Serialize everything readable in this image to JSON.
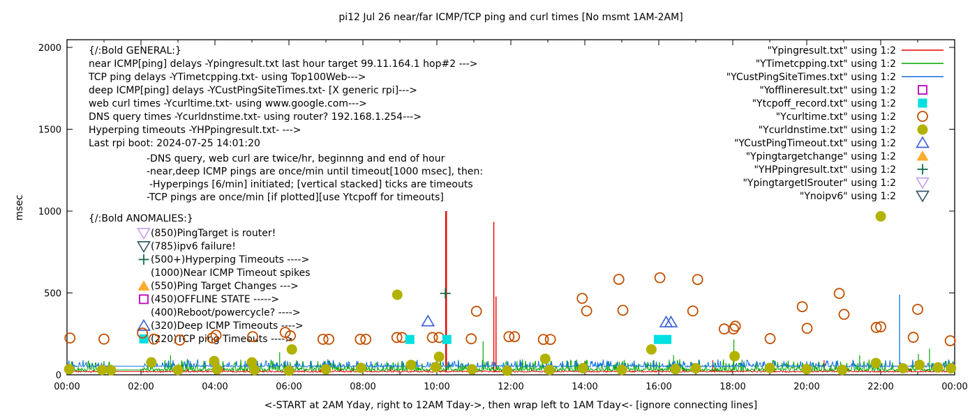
{
  "chart_data": {
    "type": "line+scatter",
    "title": "pi12 Jul 26  near/far ICMP/TCP ping and curl times [No msmt 1AM-2AM]",
    "xlabel": "<-START at 2AM Yday, right to 12AM Tday->, then wrap left to 1AM Tday<- [ignore connecting lines]",
    "ylabel": "msec",
    "xlim_hours": [
      0,
      24
    ],
    "ylim": [
      0,
      2000
    ],
    "yticks": [
      0,
      500,
      1000,
      1500,
      2000
    ],
    "xtick_step_hours": 2,
    "xtick_labels": [
      "00:00",
      "02:00",
      "04:00",
      "06:00",
      "08:00",
      "10:00",
      "12:00",
      "14:00",
      "16:00",
      "18:00",
      "20:00",
      "22:00",
      "00:00"
    ],
    "no_measurement_gap_hours": [
      1.2,
      2.02
    ],
    "grid": false,
    "legend_position": "top-right-inside",
    "colors": {
      "red": "#e60000",
      "green": "#00a400",
      "blue": "#0d6fe0",
      "magenta": "#bf00bf",
      "cyan": "#00e0e0",
      "orangebrown": "#c24e00",
      "olive": "#b2b200",
      "triblue": "#3f63d8",
      "orange": "#ffab2e",
      "darkgreen": "#0f6b45",
      "violet": "#c9a0f0",
      "slate": "#35596e",
      "axis": "#000000"
    },
    "lines": [
      {
        "name": "Ypingresult near ICMP ping",
        "color_key": "red",
        "base": 20,
        "jitter": 4,
        "spike_prob": 0.04,
        "spike_amp": 20,
        "spikes": [
          [
            10.25,
            1000,
            2.4
          ],
          [
            11.54,
            934,
            1.4
          ],
          [
            11.6,
            478,
            1.4
          ],
          [
            14.0,
            84,
            1.2
          ],
          [
            17.46,
            89,
            1.2
          ],
          [
            20.47,
            89,
            1.2
          ]
        ]
      },
      {
        "name": "YTimetcpping TCP ping",
        "color_key": "green",
        "base": 30,
        "jitter": 8,
        "spike_prob": 0.3,
        "spike_amp": 60,
        "spikes": [
          [
            2.8,
            119,
            1.2
          ],
          [
            5.75,
            138,
            1.2
          ],
          [
            11.25,
            205,
            1.2
          ],
          [
            16.4,
            120,
            1.2
          ],
          [
            18.03,
            216,
            1.2
          ],
          [
            21.43,
            119,
            1.2
          ],
          [
            23.02,
            127,
            1.2
          ],
          [
            23.32,
            160,
            1.2
          ]
        ]
      },
      {
        "name": "YCustPingSiteTimes deep ICMP",
        "color_key": "blue",
        "base": 52,
        "jitter": 5,
        "spike_prob": 0.25,
        "spike_amp": 38,
        "spikes": [
          [
            22.51,
            490,
            1.3
          ]
        ]
      }
    ],
    "scatter": [
      {
        "name": "Ycurltime web curl times",
        "marker": "circle-open",
        "color_key": "orangebrown",
        "points": [
          [
            0.08,
            225
          ],
          [
            1.0,
            218
          ],
          [
            2.04,
            255
          ],
          [
            2.35,
            218
          ],
          [
            3.05,
            212
          ],
          [
            3.93,
            225
          ],
          [
            4.03,
            242
          ],
          [
            5.02,
            233
          ],
          [
            5.9,
            259
          ],
          [
            6.04,
            238
          ],
          [
            6.92,
            217
          ],
          [
            7.08,
            217
          ],
          [
            7.93,
            217
          ],
          [
            8.08,
            217
          ],
          [
            8.92,
            228
          ],
          [
            9.06,
            228
          ],
          [
            9.88,
            228
          ],
          [
            10.06,
            228
          ],
          [
            10.93,
            220
          ],
          [
            11.07,
            388
          ],
          [
            11.95,
            233
          ],
          [
            12.1,
            233
          ],
          [
            12.88,
            216
          ],
          [
            13.07,
            216
          ],
          [
            13.93,
            467
          ],
          [
            14.05,
            390
          ],
          [
            14.92,
            583
          ],
          [
            15.03,
            394
          ],
          [
            16.03,
            593
          ],
          [
            16.92,
            390
          ],
          [
            17.05,
            582
          ],
          [
            17.77,
            280
          ],
          [
            18.02,
            280
          ],
          [
            18.07,
            297
          ],
          [
            19.01,
            221
          ],
          [
            19.88,
            416
          ],
          [
            20.01,
            284
          ],
          [
            20.88,
            497
          ],
          [
            21.01,
            369
          ],
          [
            21.88,
            289
          ],
          [
            22.0,
            293
          ],
          [
            22.88,
            229
          ],
          [
            23.0,
            400
          ],
          [
            23.88,
            208
          ]
        ]
      },
      {
        "name": "Ycurldnstime DNS query times",
        "marker": "circle-filled",
        "color_key": "olive",
        "points": [
          [
            0.06,
            34
          ],
          [
            0.95,
            30
          ],
          [
            1.19,
            28
          ],
          [
            2.28,
            76
          ],
          [
            3.0,
            30
          ],
          [
            3.98,
            84
          ],
          [
            4.06,
            34
          ],
          [
            5.0,
            76
          ],
          [
            5.07,
            30
          ],
          [
            6.0,
            25
          ],
          [
            6.08,
            155
          ],
          [
            7.0,
            34
          ],
          [
            7.95,
            42
          ],
          [
            8.93,
            489
          ],
          [
            9.3,
            60
          ],
          [
            9.97,
            47
          ],
          [
            10.06,
            110
          ],
          [
            10.95,
            34
          ],
          [
            11.9,
            25
          ],
          [
            12.93,
            98
          ],
          [
            13.05,
            30
          ],
          [
            13.95,
            40
          ],
          [
            15.0,
            30
          ],
          [
            15.8,
            155
          ],
          [
            16.45,
            35
          ],
          [
            17.0,
            40
          ],
          [
            18.05,
            114
          ],
          [
            19.0,
            42
          ],
          [
            20.0,
            35
          ],
          [
            20.96,
            30
          ],
          [
            21.87,
            72
          ],
          [
            22.0,
            968
          ],
          [
            22.6,
            40
          ],
          [
            23.05,
            60
          ],
          [
            23.55,
            45
          ],
          [
            23.9,
            40
          ]
        ]
      },
      {
        "name": "Ytcpoff_record TCP ping timeouts",
        "marker": "square-filled",
        "color_key": "cyan",
        "points": [
          [
            9.27,
            216
          ],
          [
            10.27,
            216
          ],
          [
            15.99,
            216
          ],
          [
            16.22,
            216
          ]
        ]
      },
      {
        "name": "YCustPingTimeout deep ICMP timeouts",
        "marker": "tri-up-open",
        "color_key": "triblue",
        "points": [
          [
            9.76,
            327
          ],
          [
            16.2,
            321
          ],
          [
            16.33,
            321
          ]
        ]
      },
      {
        "name": "YHPpingresult hyperping timeouts",
        "marker": "plus",
        "color_key": "darkgreen",
        "points": [
          [
            10.23,
            497
          ]
        ]
      }
    ],
    "legend": [
      {
        "label": "\"Ypingresult.txt\" using 1:2",
        "marker": "line",
        "color_key": "red"
      },
      {
        "label": "\"YTimetcpping.txt\" using 1:2",
        "marker": "line",
        "color_key": "green"
      },
      {
        "label": "\"YCustPingSiteTimes.txt\" using 1:2",
        "marker": "line",
        "color_key": "blue"
      },
      {
        "label": "\"Yofflineresult.txt\" using 1:2",
        "marker": "square-open",
        "color_key": "magenta"
      },
      {
        "label": "\"Ytcpoff_record.txt\" using 1:2",
        "marker": "square-filled",
        "color_key": "cyan"
      },
      {
        "label": "\"Ycurltime.txt\" using 1:2",
        "marker": "circle-open",
        "color_key": "orangebrown"
      },
      {
        "label": "\"Ycurldnstime.txt\" using 1:2",
        "marker": "circle-filled",
        "color_key": "olive"
      },
      {
        "label": "\"YCustPingTimeout.txt\" using 1:2",
        "marker": "tri-up-open",
        "color_key": "triblue"
      },
      {
        "label": "\"Ypingtargetchange\" using 1:2",
        "marker": "tri-up-filled",
        "color_key": "orange"
      },
      {
        "label": "\"YHPpingresult.txt\" using 1:2",
        "marker": "plus",
        "color_key": "darkgreen"
      },
      {
        "label": "\"YpingtargetISrouter\" using 1:2",
        "marker": "tri-down-open",
        "color_key": "violet"
      },
      {
        "label": "\"Ynoipv6\" using 1:2",
        "marker": "tri-down-open",
        "color_key": "slate"
      }
    ],
    "annotations": {
      "general": {
        "lines": [
          "{/:Bold GENERAL:}",
          "near ICMP[ping] delays -Ypingresult.txt last hour target 99.11.164.1 hop#2 --->",
          "TCP ping delays -YTimetcpping.txt- using Top100Web--->",
          "deep ICMP[ping] delays -YCustPingSiteTimes.txt- [X generic rpi]--->",
          "web curl times -Ycurltime.txt- using www.google.com--->",
          "DNS query times -Ycurldnstime.txt- using router? 192.168.1.254--->",
          "Hyperping timeouts -YHPpingresult.txt- --->",
          "Last rpi boot: 2024-07-25 14:01:20"
        ]
      },
      "details": {
        "lines": [
          "-DNS query, web curl are twice/hr, beginnng and end of hour",
          "-near,deep ICMP pings are once/min until timeout[1000 msec], then:",
          " -Hyperpings [6/min] initiated; [vertical stacked] ticks are timeouts",
          "-TCP pings are once/min [if plotted][use Ytcpoff for timeouts]"
        ]
      },
      "anomalies": {
        "header": "{/:Bold ANOMALIES:}",
        "items": [
          {
            "icon": "tri-down-open",
            "color_key": "violet",
            "label": "(850)PingTarget is router!"
          },
          {
            "icon": "tri-down-open",
            "color_key": "slate",
            "label": "(785)ipv6 failure!"
          },
          {
            "icon": "plus",
            "color_key": "darkgreen",
            "label": "(500+)Hyperping Timeouts ---->"
          },
          {
            "icon": null,
            "color_key": null,
            "label": "(1000)Near ICMP Timeout spikes"
          },
          {
            "icon": "tri-up-filled",
            "color_key": "orange",
            "label": "(550)Ping Target Changes --->"
          },
          {
            "icon": "square-open",
            "color_key": "magenta",
            "label": "(450)OFFLINE STATE ----->"
          },
          {
            "icon": null,
            "color_key": null,
            "label": "(400)Reboot/powercycle? ---->"
          },
          {
            "icon": "tri-up-open",
            "color_key": "triblue",
            "label": "(320)Deep ICMP Timeouts ---->"
          },
          {
            "icon": "square-filled",
            "color_key": "cyan",
            "label": "(220)TCP ping Timeouts ---->"
          }
        ]
      }
    }
  }
}
